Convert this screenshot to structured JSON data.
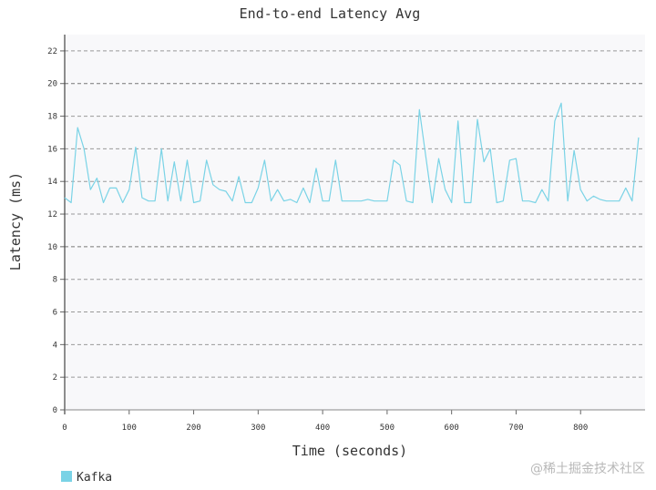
{
  "chart_data": {
    "type": "line",
    "title": "End-to-end Latency Avg",
    "xlabel": "Time (seconds)",
    "ylabel": "Latency (ms)",
    "xlim": [
      0,
      900
    ],
    "ylim": [
      0,
      23
    ],
    "x_ticks": [
      0,
      100,
      200,
      300,
      400,
      500,
      600,
      700,
      800
    ],
    "y_ticks": [
      0,
      2,
      4,
      6,
      8,
      10,
      12,
      14,
      16,
      18,
      20,
      22
    ],
    "grid": "horizontal-dashed",
    "legend_position": "bottom-left",
    "series": [
      {
        "name": "Kafka",
        "color": "#7ad3e6",
        "x": [
          0,
          10,
          20,
          30,
          40,
          50,
          60,
          70,
          80,
          90,
          100,
          110,
          120,
          130,
          140,
          150,
          160,
          170,
          180,
          190,
          200,
          210,
          220,
          230,
          240,
          250,
          260,
          270,
          280,
          290,
          300,
          310,
          320,
          330,
          340,
          350,
          360,
          370,
          380,
          390,
          400,
          410,
          420,
          430,
          440,
          450,
          460,
          470,
          480,
          490,
          500,
          510,
          520,
          530,
          540,
          550,
          560,
          570,
          580,
          590,
          600,
          610,
          620,
          630,
          640,
          650,
          660,
          670,
          680,
          690,
          700,
          710,
          720,
          730,
          740,
          750,
          760,
          770,
          780,
          790,
          800,
          810,
          820,
          830,
          840,
          850,
          860,
          870,
          880,
          890
        ],
        "y": [
          13.0,
          12.7,
          17.3,
          16.0,
          13.5,
          14.2,
          12.7,
          13.6,
          13.6,
          12.7,
          13.5,
          16.1,
          13.0,
          12.8,
          12.8,
          16.0,
          12.8,
          15.2,
          12.8,
          15.3,
          12.7,
          12.8,
          15.3,
          13.8,
          13.5,
          13.4,
          12.8,
          14.3,
          12.7,
          12.7,
          13.6,
          15.3,
          12.8,
          13.5,
          12.8,
          12.9,
          12.7,
          13.6,
          12.7,
          14.8,
          12.8,
          12.8,
          15.3,
          12.8,
          12.8,
          12.8,
          12.8,
          12.9,
          12.8,
          12.8,
          12.8,
          15.3,
          15.0,
          12.8,
          12.7,
          18.4,
          15.5,
          12.7,
          15.4,
          13.5,
          12.7,
          17.7,
          12.7,
          12.7,
          17.8,
          15.2,
          16.0,
          12.7,
          12.8,
          15.3,
          15.4,
          12.8,
          12.8,
          12.7,
          13.5,
          12.8,
          17.7,
          18.8,
          12.8,
          15.9,
          13.5,
          12.8,
          13.1,
          12.9,
          12.8,
          12.8,
          12.8,
          13.6,
          12.8,
          16.7
        ]
      }
    ]
  },
  "watermark": "@稀土掘金技术社区"
}
